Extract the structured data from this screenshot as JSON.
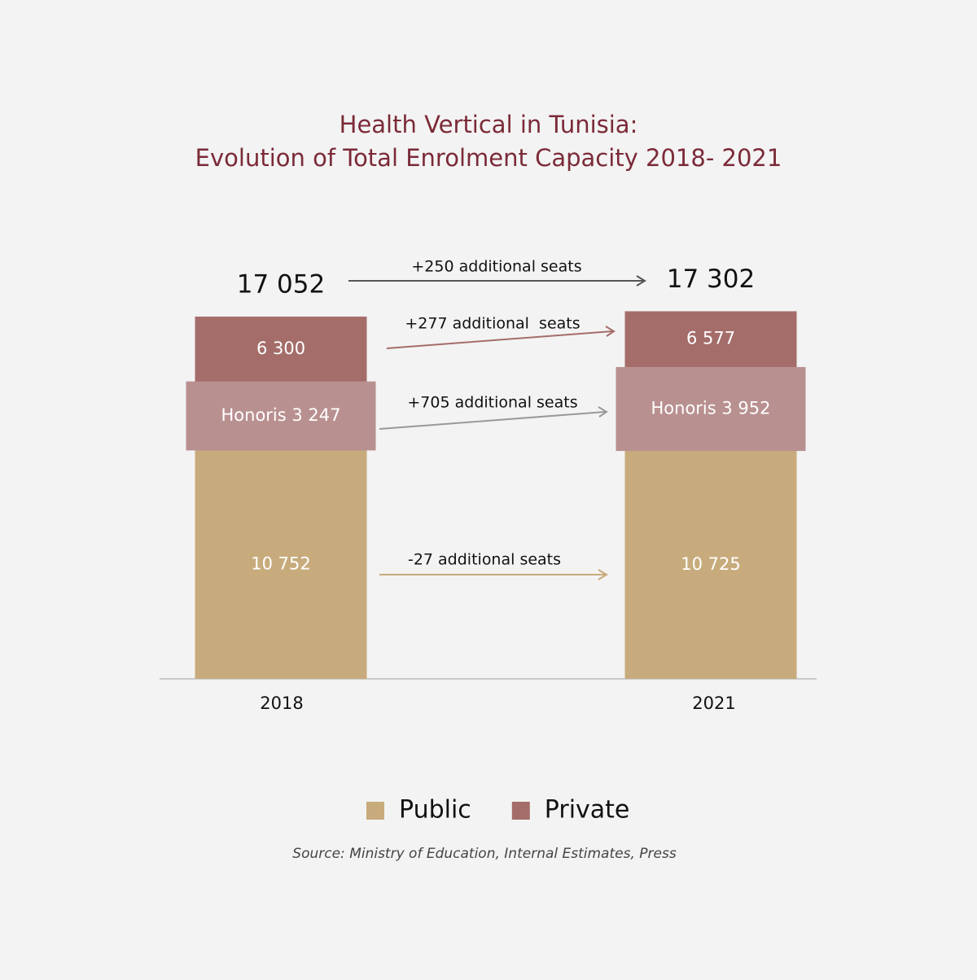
{
  "chart_data": {
    "type": "bar",
    "title": [
      "Health Vertical in Tunisia:",
      "Evolution of Total Enrolment Capacity 2018- 2021"
    ],
    "categories": [
      "2018",
      "2021"
    ],
    "series": [
      {
        "name": "Public",
        "color": "#c8ab7c",
        "values": [
          10752,
          10725
        ],
        "value_labels": [
          "10 752",
          "10 725"
        ]
      },
      {
        "name": "Private",
        "color": "#a46d6a",
        "values": [
          6300,
          6577
        ],
        "value_labels": [
          "6 300",
          "6 577"
        ]
      },
      {
        "color": "#b99090",
        "values": [
          3247,
          3952
        ],
        "value_labels": [
          "Honoris 3 247",
          "Honoris 3 952"
        ]
      }
    ],
    "totals": [
      17052,
      17302
    ],
    "total_labels": [
      "17 052",
      "17 302"
    ],
    "annotations": [
      "+250 additional seats",
      "+277 additional  seats",
      "+705 additional seats",
      "-27 additional seats"
    ],
    "source": "Source: Ministry of Education, Internal Estimates, Press"
  }
}
